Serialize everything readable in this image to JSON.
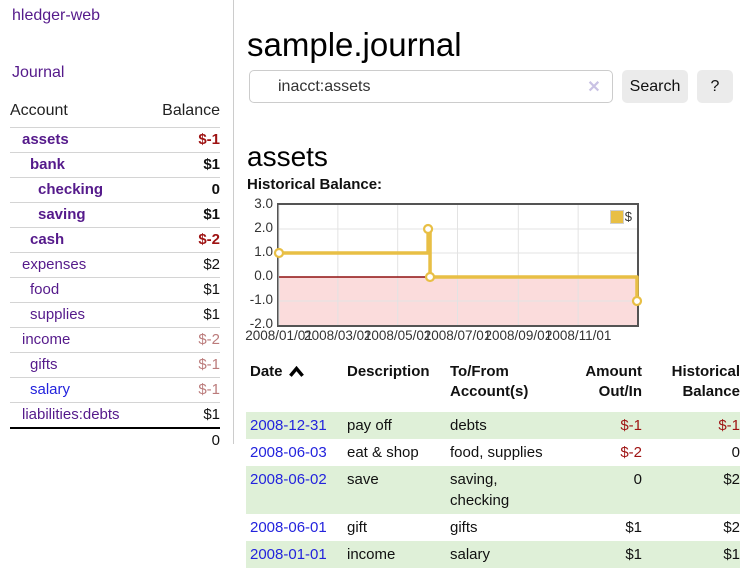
{
  "app": {
    "title": "hledger-web"
  },
  "colors": {
    "link_purple": "#551a8b",
    "link_blue": "#2323dd",
    "negative_red": "#9e1212",
    "negative_faded": "#bb7b7b",
    "row_green": "#dff0d8",
    "chart_line_gold": "#e8bf45",
    "chart_negative_fill": "#fbdcdc",
    "chart_zero_line": "#8f1010"
  },
  "sidebar": {
    "nav_journal": "Journal",
    "accounts_table": {
      "col_account": "Account",
      "col_balance": "Balance",
      "rows": [
        {
          "name": "assets",
          "balance": "$-1",
          "level": 1,
          "bold": true,
          "blue": false,
          "balance_style": "negstrong",
          "last": false
        },
        {
          "name": "bank",
          "balance": "$1",
          "level": 2,
          "bold": true,
          "blue": false,
          "balance_style": "strong",
          "last": false
        },
        {
          "name": "checking",
          "balance": "0",
          "level": 3,
          "bold": true,
          "blue": false,
          "balance_style": "strong",
          "last": false
        },
        {
          "name": "saving",
          "balance": "$1",
          "level": 3,
          "bold": true,
          "blue": false,
          "balance_style": "strong",
          "last": false
        },
        {
          "name": "cash",
          "balance": "$-2",
          "level": 2,
          "bold": true,
          "blue": false,
          "balance_style": "negstrong",
          "last": false
        },
        {
          "name": "expenses",
          "balance": "$2",
          "level": 1,
          "bold": false,
          "blue": false,
          "balance_style": "plain",
          "last": false
        },
        {
          "name": "food",
          "balance": "$1",
          "level": 2,
          "bold": false,
          "blue": false,
          "balance_style": "plain",
          "last": false
        },
        {
          "name": "supplies",
          "balance": "$1",
          "level": 2,
          "bold": false,
          "blue": false,
          "balance_style": "plain",
          "last": false
        },
        {
          "name": "income",
          "balance": "$-2",
          "level": 1,
          "bold": false,
          "blue": false,
          "balance_style": "negfade",
          "last": false
        },
        {
          "name": "gifts",
          "balance": "$-1",
          "level": 2,
          "bold": false,
          "blue": false,
          "balance_style": "negfade",
          "last": false
        },
        {
          "name": "salary",
          "balance": "$-1",
          "level": 2,
          "bold": false,
          "blue": true,
          "balance_style": "negfade",
          "last": false
        },
        {
          "name": "liabilities:debts",
          "balance": "$1",
          "level": 1,
          "bold": false,
          "blue": false,
          "balance_style": "plain",
          "last": true
        }
      ],
      "total": "0"
    }
  },
  "main": {
    "title": "sample.journal",
    "search": {
      "value": "inacct:assets",
      "clear_icon": "✕",
      "button": "Search",
      "help_button": "?"
    },
    "account_heading": "assets",
    "chart_label": "Historical Balance:",
    "txn_table": {
      "headers": [
        {
          "l1": "Date",
          "l2": "",
          "align": "l",
          "sortable": true
        },
        {
          "l1": "Description",
          "l2": "",
          "align": "l",
          "sortable": false
        },
        {
          "l1": "To/From",
          "l2": "Account(s)",
          "align": "l",
          "sortable": false
        },
        {
          "l1": "Amount",
          "l2": "Out/In",
          "align": "r",
          "sortable": false
        },
        {
          "l1": "Historical",
          "l2": "Balance",
          "align": "r",
          "sortable": false
        }
      ],
      "rows": [
        {
          "date": "2008-12-31",
          "description": "pay off",
          "accounts": "debts",
          "amount": "$-1",
          "amount_neg": true,
          "balance": "$-1",
          "balance_neg": true
        },
        {
          "date": "2008-06-03",
          "description": "eat & shop",
          "accounts": "food, supplies",
          "amount": "$-2",
          "amount_neg": true,
          "balance": "0",
          "balance_neg": false
        },
        {
          "date": "2008-06-02",
          "description": "save",
          "accounts": "saving,\nchecking",
          "amount": "0",
          "amount_neg": false,
          "balance": "$2",
          "balance_neg": false
        },
        {
          "date": "2008-06-01",
          "description": "gift",
          "accounts": "gifts",
          "amount": "$1",
          "amount_neg": false,
          "balance": "$2",
          "balance_neg": false
        },
        {
          "date": "2008-01-01",
          "description": "income",
          "accounts": "salary",
          "amount": "$1",
          "amount_neg": false,
          "balance": "$1",
          "balance_neg": false
        }
      ]
    }
  },
  "chart_data": {
    "type": "line",
    "title": "Historical Balance:",
    "step": true,
    "series": [
      {
        "name": "$",
        "color": "#e8bf45",
        "points": [
          [
            "2008-01-01",
            1
          ],
          [
            "2008-06-01",
            2
          ],
          [
            "2008-06-03",
            0
          ],
          [
            "2008-12-31",
            -1
          ]
        ]
      }
    ],
    "xlim": [
      "2008-01-01",
      "2008-12-31"
    ],
    "ylim": [
      -2,
      3
    ],
    "y_ticks": [
      3.0,
      2.0,
      1.0,
      0.0,
      -1.0,
      -2.0
    ],
    "x_tick_dates": [
      "2008-01-01",
      "2008-03-01",
      "2008-05-01",
      "2008-07-01",
      "2008-09-01",
      "2008-11-01"
    ],
    "x_tick_labels": [
      "2008/01/01",
      "2008/03/01",
      "2008/05/01",
      "2008/07/01",
      "2008/09/01",
      "2008/11/01"
    ],
    "grid": true,
    "legend_position": "top-right",
    "negative_fill": "#fbdcdc",
    "zero_line_color": "#8f1010"
  }
}
